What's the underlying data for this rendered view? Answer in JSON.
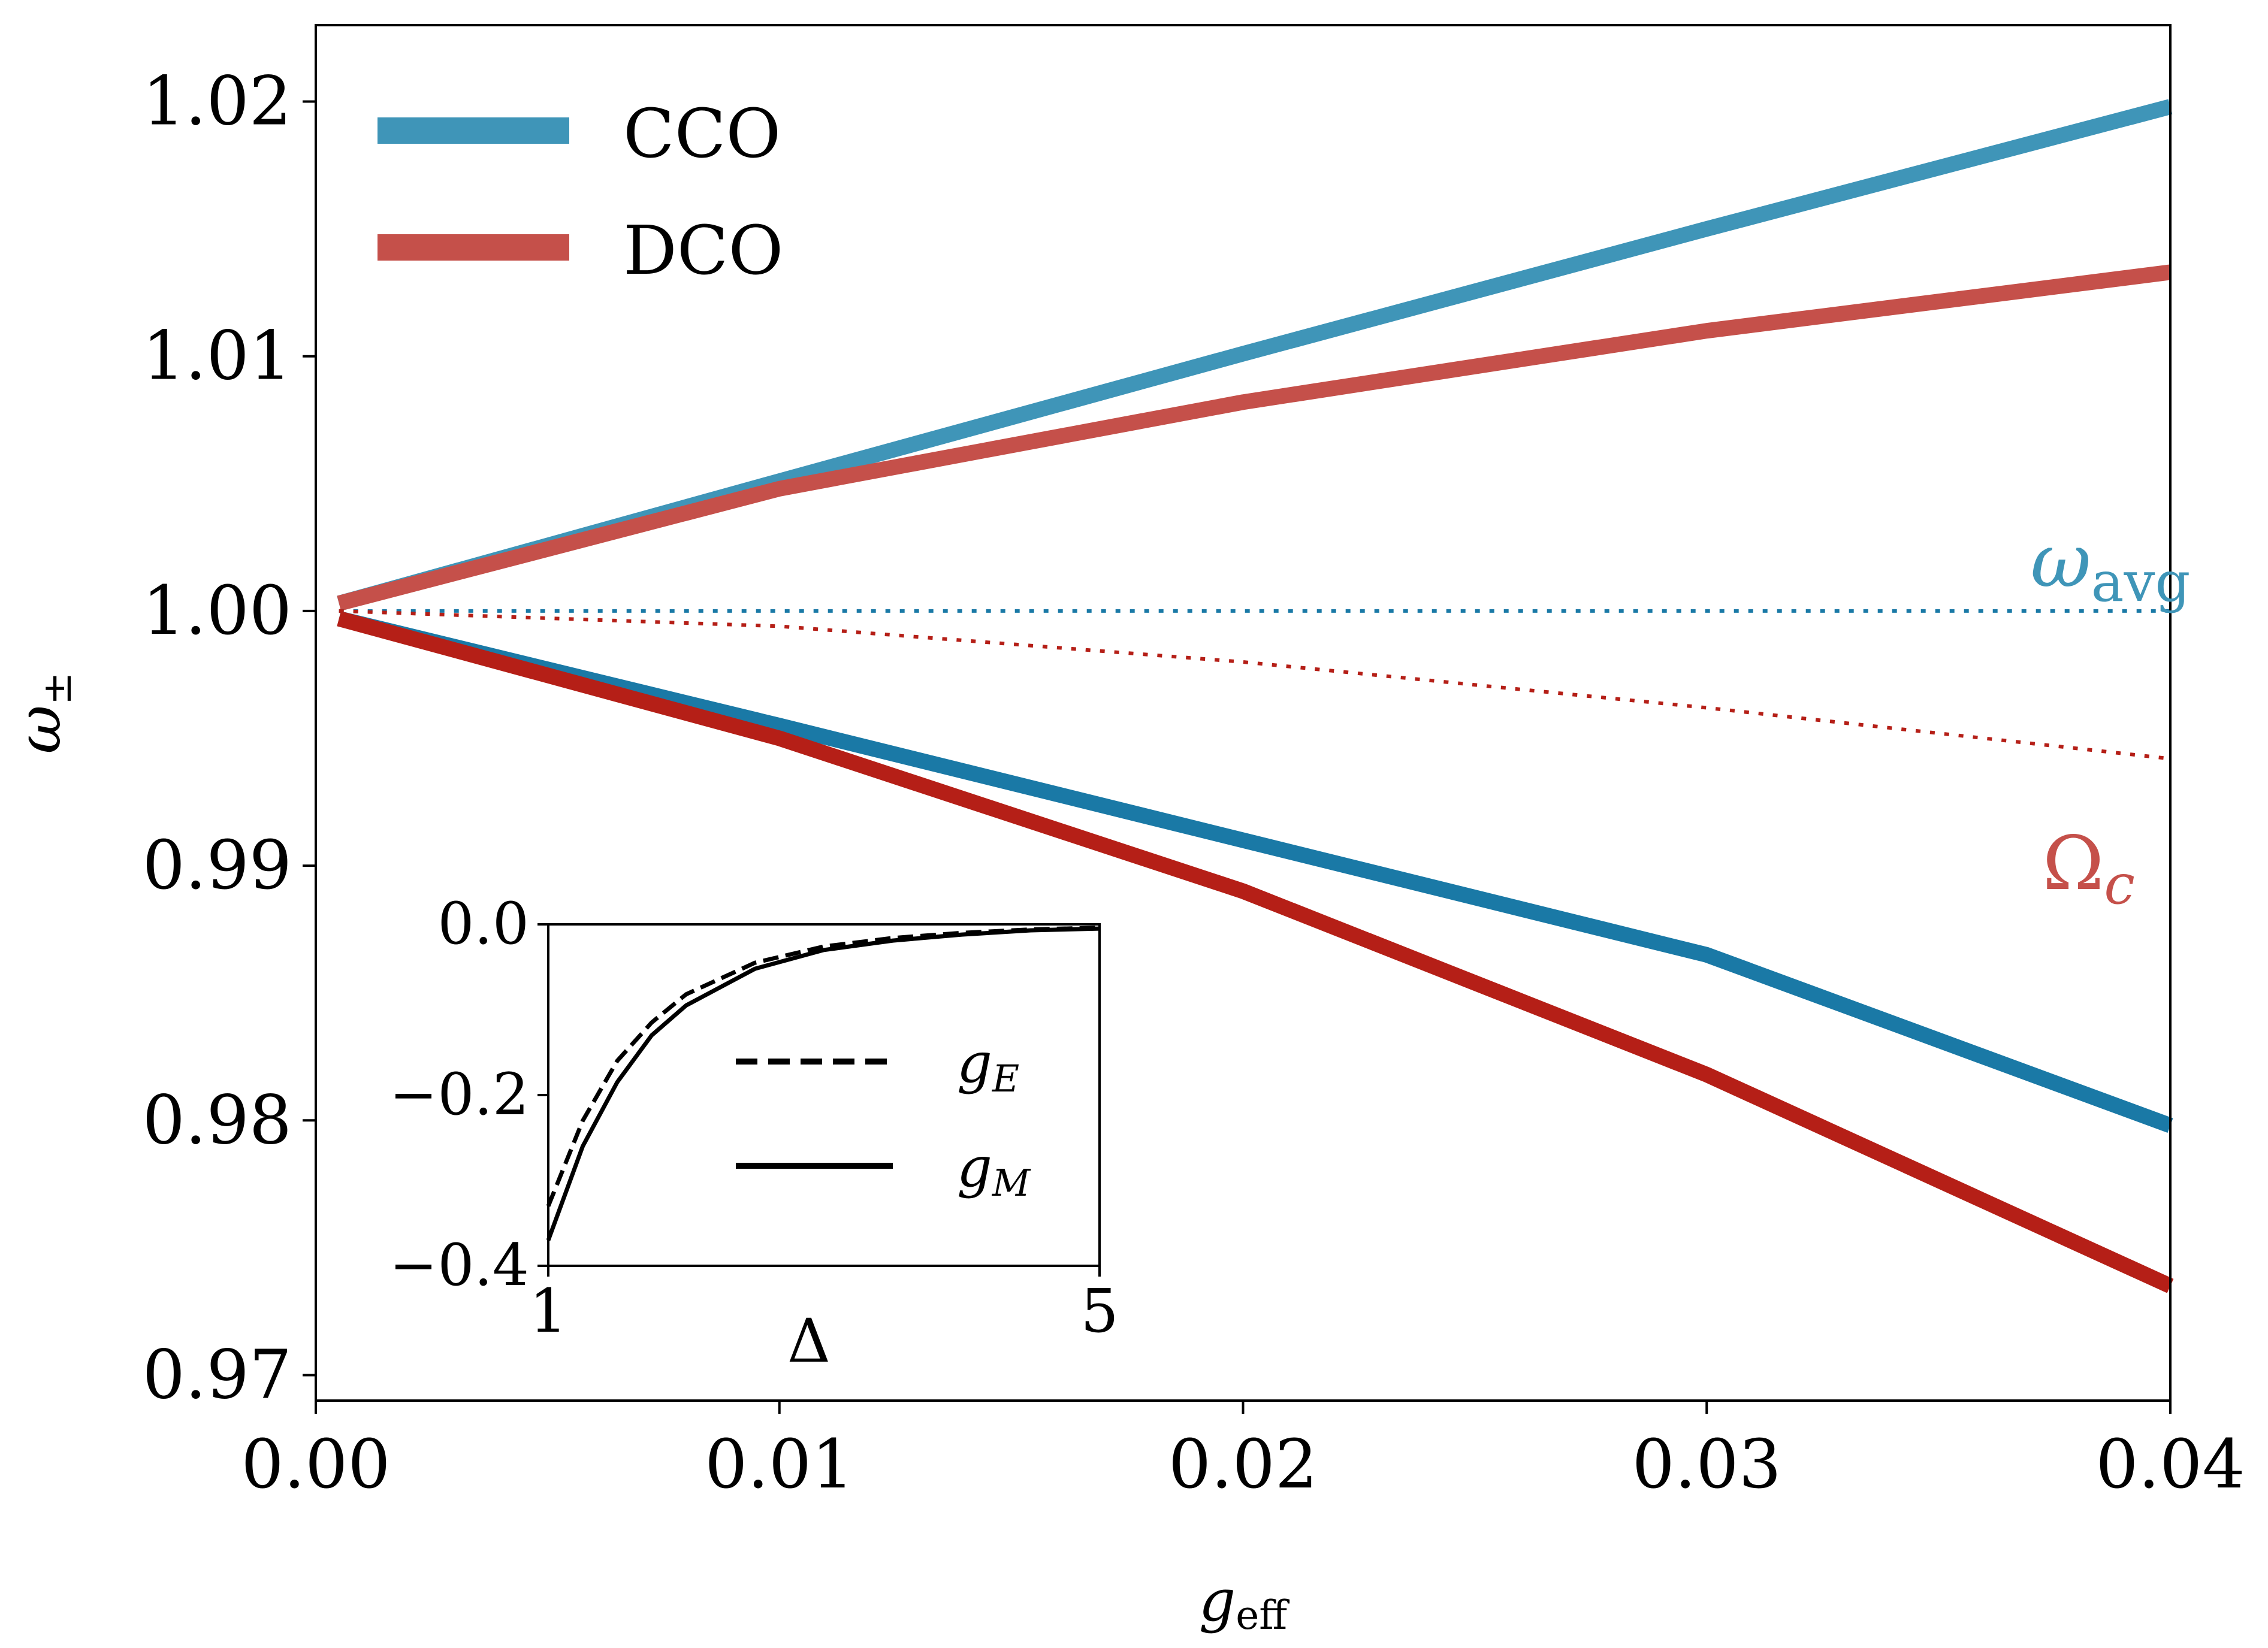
{
  "chart_data": [
    {
      "type": "line",
      "role": "main",
      "xlabel": {
        "base": "g",
        "sub": "eff"
      },
      "ylabel": {
        "base": "ω",
        "sub": "±"
      },
      "xlim": [
        0.0,
        0.04
      ],
      "ylim": [
        0.969,
        1.023
      ],
      "xticks": [
        0.0,
        0.01,
        0.02,
        0.03,
        0.04
      ],
      "xtick_labels": [
        "0.00",
        "0.01",
        "0.02",
        "0.03",
        "0.04"
      ],
      "yticks": [
        0.97,
        0.98,
        0.99,
        1.0,
        1.01,
        1.02
      ],
      "ytick_labels": [
        "0.97",
        "0.98",
        "0.99",
        "1.00",
        "1.01",
        "1.02"
      ],
      "legend": {
        "position": "top-left",
        "entries": [
          {
            "label": "CCO",
            "color": "#3f95b8"
          },
          {
            "label": "DCO",
            "color": "#c5504a"
          }
        ]
      },
      "series": [
        {
          "name": "CCO upper",
          "color": "#3f95b8",
          "style": "solid",
          "x": [
            0.0005,
            0.01,
            0.02,
            0.03,
            0.04
          ],
          "y": [
            1.0003,
            1.0051,
            1.0101,
            1.015,
            1.0198
          ]
        },
        {
          "name": "DCO upper",
          "color": "#c5504a",
          "style": "solid",
          "x": [
            0.0005,
            0.01,
            0.02,
            0.03,
            0.04
          ],
          "y": [
            1.0003,
            1.0048,
            1.0082,
            1.011,
            1.0133
          ]
        },
        {
          "name": "CCO lower",
          "color": "#1a79a6",
          "style": "solid",
          "x": [
            0.0005,
            0.01,
            0.02,
            0.03,
            0.04
          ],
          "y": [
            0.9997,
            0.9955,
            0.991,
            0.9865,
            0.9798
          ]
        },
        {
          "name": "DCO lower",
          "color": "#b51f17",
          "style": "solid",
          "x": [
            0.0005,
            0.01,
            0.02,
            0.03,
            0.04
          ],
          "y": [
            0.9997,
            0.995,
            0.989,
            0.9818,
            0.9735
          ]
        },
        {
          "name": "ω_avg",
          "color": "#1a79a6",
          "style": "dotted",
          "x": [
            0.0005,
            0.04
          ],
          "y": [
            1.0,
            1.0
          ]
        },
        {
          "name": "Ω_c",
          "color": "#b51f17",
          "style": "dotted",
          "x": [
            0.0005,
            0.01,
            0.02,
            0.03,
            0.04
          ],
          "y": [
            1.0,
            0.9994,
            0.998,
            0.9962,
            0.9942
          ]
        }
      ],
      "annotations": [
        {
          "base": "ω",
          "sub": "avg",
          "color": "#3f95b8",
          "x": 0.0375,
          "y": 1.0012
        },
        {
          "base": "Ω",
          "sub": "c",
          "color": "#c5504a",
          "x": 0.0375,
          "y": 0.9905
        }
      ]
    },
    {
      "type": "line",
      "role": "inset",
      "xlabel": "Δ",
      "xlim": [
        1,
        5
      ],
      "ylim": [
        -0.4,
        0.0
      ],
      "xticks": [
        1,
        5
      ],
      "xtick_labels": [
        "1",
        "5"
      ],
      "yticks": [
        0.0,
        -0.2,
        -0.4
      ],
      "ytick_labels": [
        "0.0",
        "−0.2",
        "−0.4"
      ],
      "legend": {
        "position": "center-right",
        "entries": [
          {
            "base": "g",
            "sub": "E",
            "style": "dashed"
          },
          {
            "base": "g",
            "sub": "M",
            "style": "solid"
          }
        ]
      },
      "series": [
        {
          "name": "g_E",
          "style": "dashed",
          "color": "#000000",
          "x": [
            1.0,
            1.25,
            1.5,
            1.75,
            2.0,
            2.5,
            3.0,
            3.5,
            4.0,
            4.5,
            5.0
          ],
          "y": [
            -0.33,
            -0.23,
            -0.16,
            -0.115,
            -0.082,
            -0.045,
            -0.026,
            -0.016,
            -0.01,
            -0.006,
            -0.004
          ]
        },
        {
          "name": "g_M",
          "style": "solid",
          "color": "#000000",
          "x": [
            1.0,
            1.25,
            1.5,
            1.75,
            2.0,
            2.5,
            3.0,
            3.5,
            4.0,
            4.5,
            5.0
          ],
          "y": [
            -0.37,
            -0.26,
            -0.185,
            -0.13,
            -0.095,
            -0.052,
            -0.03,
            -0.019,
            -0.012,
            -0.007,
            -0.005
          ]
        }
      ]
    }
  ]
}
